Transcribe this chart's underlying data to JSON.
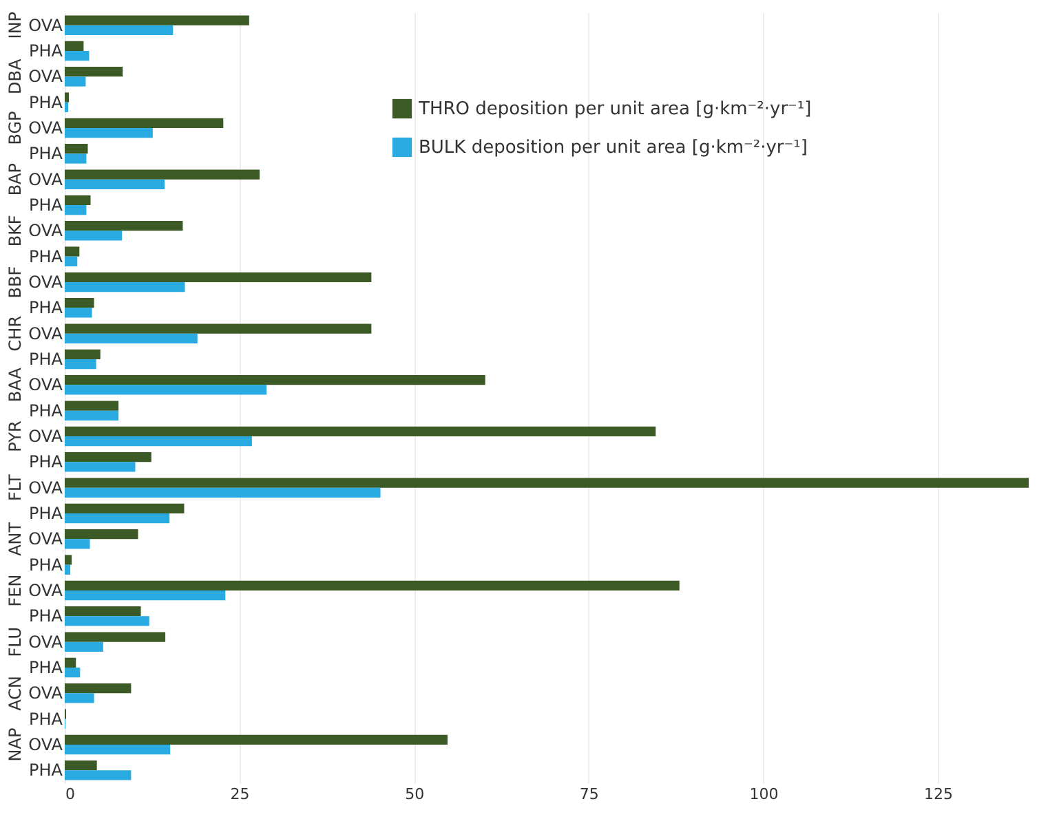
{
  "chart_data": {
    "type": "bar",
    "orientation": "horizontal",
    "categories": [
      "OVA",
      "PHA",
      "OVA",
      "PHA",
      "OVA",
      "PHA",
      "OVA",
      "PHA",
      "OVA",
      "PHA",
      "OVA",
      "PHA",
      "OVA",
      "PHA",
      "OVA",
      "PHA",
      "OVA",
      "PHA",
      "OVA",
      "PHA",
      "OVA",
      "PHA",
      "OVA",
      "PHA",
      "OVA",
      "PHA",
      "OVA",
      "PHA",
      "OVA",
      "PHA"
    ],
    "annotations": [
      "INP",
      "DBA",
      "BGP",
      "BAP",
      "BKF",
      "BBF",
      "CHR",
      "BAA",
      "PYR",
      "FLT",
      "ANT",
      "FEN",
      "FLU",
      "ACN",
      "NAP"
    ],
    "series": [
      {
        "name": "THRO deposition per unit area [g·km⁻²·yr⁻¹]",
        "color": "#3b5a25",
        "values": [
          26.4,
          2.7,
          8.3,
          0.6,
          22.7,
          3.3,
          27.9,
          3.7,
          16.9,
          2.1,
          43.9,
          4.2,
          43.9,
          5.1,
          60.2,
          7.7,
          84.6,
          12.4,
          138,
          17.1,
          10.5,
          1.0,
          88.0,
          10.9,
          14.4,
          1.6,
          9.5,
          0.2,
          54.8,
          4.6
        ]
      },
      {
        "name": "BULK deposition per unit area [g·km⁻²·yr⁻¹]",
        "color": "#29abe2",
        "values": [
          15.5,
          3.5,
          3.0,
          0.5,
          12.6,
          3.1,
          14.3,
          3.1,
          8.2,
          1.8,
          17.2,
          3.9,
          19.0,
          4.5,
          28.9,
          7.7,
          26.8,
          10.1,
          45.2,
          15.0,
          3.6,
          0.8,
          23.0,
          12.1,
          5.5,
          2.2,
          4.2,
          0.1,
          15.1,
          9.5
        ]
      }
    ],
    "xlim": [
      0,
      138
    ],
    "xticks": [
      0,
      25,
      50,
      75,
      100,
      125
    ],
    "grid": "x",
    "legend": "top right"
  }
}
